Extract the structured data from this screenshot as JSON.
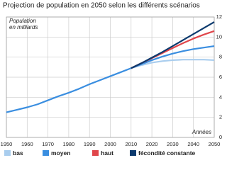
{
  "chart_data": {
    "type": "line",
    "title": "Projection de population en 2050 selon les différents scénarios",
    "y_label": [
      "Population",
      "en milliards"
    ],
    "x_label": "Années",
    "x": [
      1950,
      1955,
      1960,
      1965,
      1970,
      1975,
      1980,
      1985,
      1990,
      1995,
      2000,
      2005,
      2010,
      2015,
      2020,
      2025,
      2030,
      2035,
      2040,
      2045,
      2050
    ],
    "series": [
      {
        "name": "bas",
        "color": "#a9cdee",
        "values": [
          null,
          null,
          null,
          null,
          null,
          null,
          null,
          null,
          null,
          null,
          null,
          null,
          6.9,
          7.2,
          7.45,
          7.6,
          7.7,
          7.75,
          7.75,
          7.75,
          7.7
        ]
      },
      {
        "name": "moyen",
        "color": "#3a8ee0",
        "values": [
          2.5,
          2.75,
          3.0,
          3.3,
          3.7,
          4.1,
          4.45,
          4.85,
          5.3,
          5.7,
          6.1,
          6.5,
          6.9,
          7.3,
          7.7,
          8.05,
          8.35,
          8.6,
          8.8,
          8.95,
          9.1
        ]
      },
      {
        "name": "haut",
        "color": "#e0464b",
        "values": [
          null,
          null,
          null,
          null,
          null,
          null,
          null,
          null,
          null,
          null,
          null,
          null,
          6.9,
          7.4,
          7.9,
          8.4,
          8.9,
          9.4,
          9.85,
          10.25,
          10.6
        ]
      },
      {
        "name": "fécondité constante",
        "color": "#0b3a6e",
        "values": [
          null,
          null,
          null,
          null,
          null,
          null,
          null,
          null,
          null,
          null,
          null,
          null,
          6.9,
          7.4,
          7.95,
          8.5,
          9.1,
          9.7,
          10.3,
          10.9,
          11.5
        ]
      }
    ],
    "xlim": [
      1950,
      2050
    ],
    "xticks": [
      1950,
      1960,
      1970,
      1980,
      1990,
      2000,
      2010,
      2020,
      2030,
      2040,
      2050
    ],
    "ylim": [
      0,
      12
    ],
    "yticks": [
      0,
      2,
      4,
      6,
      8,
      10,
      12
    ],
    "grid": true
  }
}
